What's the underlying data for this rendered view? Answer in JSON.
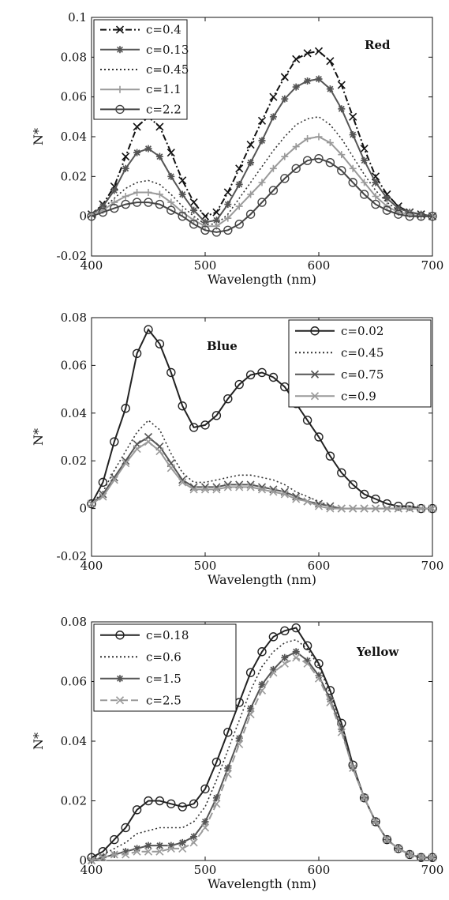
{
  "chart_data": [
    {
      "type": "line",
      "title": "Red",
      "xlabel": "Wavelength (nm)",
      "ylabel": "N*",
      "xlim": [
        400,
        700
      ],
      "ylim": [
        -0.02,
        0.1
      ],
      "xticks": [
        400,
        500,
        600,
        700
      ],
      "xtick_labels": [
        "400",
        "500",
        "600",
        "700"
      ],
      "yticks": [
        -0.02,
        0,
        0.02,
        0.04,
        0.06,
        0.08,
        0.1
      ],
      "ytick_labels": [
        "-0.02",
        "0",
        "0.02",
        "0.04",
        "0.06",
        "0.08",
        "0.1"
      ],
      "legend_position": "top-left",
      "x": [
        400,
        410,
        420,
        430,
        440,
        450,
        460,
        470,
        480,
        490,
        500,
        510,
        520,
        530,
        540,
        550,
        560,
        570,
        580,
        590,
        600,
        610,
        620,
        630,
        640,
        650,
        660,
        670,
        680,
        690,
        700
      ],
      "series": [
        {
          "name": "c=0.4",
          "color": "#111111",
          "dash": "8,3,2,3",
          "marker": "x",
          "values": [
            0.001,
            0.006,
            0.015,
            0.03,
            0.045,
            0.05,
            0.045,
            0.032,
            0.018,
            0.007,
            0.0,
            0.002,
            0.012,
            0.024,
            0.036,
            0.048,
            0.06,
            0.07,
            0.079,
            0.082,
            0.083,
            0.078,
            0.066,
            0.05,
            0.034,
            0.02,
            0.011,
            0.005,
            0.002,
            0.001,
            0.0
          ]
        },
        {
          "name": "c=0.13",
          "color": "#555555",
          "dash": "",
          "marker": "star",
          "values": [
            0.001,
            0.005,
            0.013,
            0.024,
            0.032,
            0.034,
            0.03,
            0.02,
            0.011,
            0.003,
            -0.003,
            -0.002,
            0.006,
            0.016,
            0.027,
            0.038,
            0.05,
            0.059,
            0.065,
            0.068,
            0.069,
            0.064,
            0.054,
            0.041,
            0.028,
            0.017,
            0.009,
            0.004,
            0.002,
            0.001,
            0.0
          ]
        },
        {
          "name": "c=0.45",
          "color": "#333333",
          "dash": "2,3",
          "marker": "none",
          "values": [
            0.001,
            0.004,
            0.009,
            0.014,
            0.017,
            0.018,
            0.016,
            0.011,
            0.005,
            0.0,
            -0.004,
            -0.004,
            0.001,
            0.009,
            0.017,
            0.025,
            0.033,
            0.04,
            0.046,
            0.049,
            0.05,
            0.046,
            0.039,
            0.03,
            0.021,
            0.013,
            0.007,
            0.003,
            0.001,
            0.0,
            0.0
          ]
        },
        {
          "name": "c=1.1",
          "color": "#9a9a9a",
          "dash": "",
          "marker": "plus",
          "values": [
            0.001,
            0.003,
            0.007,
            0.01,
            0.012,
            0.012,
            0.011,
            0.007,
            0.002,
            -0.002,
            -0.005,
            -0.005,
            -0.001,
            0.005,
            0.011,
            0.017,
            0.024,
            0.03,
            0.035,
            0.039,
            0.04,
            0.037,
            0.031,
            0.024,
            0.017,
            0.01,
            0.005,
            0.002,
            0.001,
            0.0,
            0.0
          ]
        },
        {
          "name": "c=2.2",
          "color": "#444444",
          "dash": "",
          "marker": "circle",
          "values": [
            0.0,
            0.002,
            0.004,
            0.006,
            0.007,
            0.007,
            0.006,
            0.003,
            0.0,
            -0.004,
            -0.007,
            -0.008,
            -0.007,
            -0.004,
            0.001,
            0.007,
            0.013,
            0.019,
            0.024,
            0.028,
            0.029,
            0.027,
            0.023,
            0.017,
            0.011,
            0.006,
            0.003,
            0.001,
            0.0,
            0.0,
            0.0
          ]
        }
      ]
    },
    {
      "type": "line",
      "title": "Blue",
      "xlabel": "Wavelength (nm)",
      "ylabel": "N*",
      "xlim": [
        400,
        700
      ],
      "ylim": [
        -0.02,
        0.08
      ],
      "xticks": [
        400,
        500,
        600,
        700
      ],
      "xtick_labels": [
        "400",
        "500",
        "600",
        "700"
      ],
      "yticks": [
        -0.02,
        0,
        0.02,
        0.04,
        0.06,
        0.08
      ],
      "ytick_labels": [
        "-0.02",
        "0",
        "0.02",
        "0.04",
        "0.06",
        "0.08"
      ],
      "legend_position": "top-right",
      "x": [
        400,
        410,
        420,
        430,
        440,
        450,
        460,
        470,
        480,
        490,
        500,
        510,
        520,
        530,
        540,
        550,
        560,
        570,
        580,
        590,
        600,
        610,
        620,
        630,
        640,
        650,
        660,
        670,
        680,
        690,
        700
      ],
      "series": [
        {
          "name": "c=0.02",
          "color": "#222222",
          "dash": "",
          "marker": "circle",
          "values": [
            0.002,
            0.011,
            0.028,
            0.042,
            0.065,
            0.075,
            0.069,
            0.057,
            0.043,
            0.034,
            0.035,
            0.039,
            0.046,
            0.052,
            0.056,
            0.057,
            0.055,
            0.051,
            0.044,
            0.037,
            0.03,
            0.022,
            0.015,
            0.01,
            0.006,
            0.004,
            0.002,
            0.001,
            0.001,
            0.0,
            0.0
          ]
        },
        {
          "name": "c=0.45",
          "color": "#333333",
          "dash": "2,3",
          "marker": "none",
          "values": [
            0.002,
            0.007,
            0.016,
            0.024,
            0.032,
            0.037,
            0.033,
            0.023,
            0.015,
            0.011,
            0.011,
            0.012,
            0.013,
            0.014,
            0.014,
            0.013,
            0.012,
            0.01,
            0.007,
            0.005,
            0.003,
            0.001,
            0.0,
            0.0,
            0.0,
            0.0,
            0.0,
            0.0,
            0.0,
            0.0,
            0.0
          ]
        },
        {
          "name": "c=0.75",
          "color": "#555555",
          "dash": "",
          "marker": "x",
          "values": [
            0.002,
            0.006,
            0.013,
            0.02,
            0.027,
            0.03,
            0.026,
            0.019,
            0.012,
            0.009,
            0.009,
            0.009,
            0.01,
            0.01,
            0.01,
            0.009,
            0.008,
            0.007,
            0.005,
            0.003,
            0.002,
            0.001,
            0.0,
            0.0,
            0.0,
            0.0,
            0.0,
            0.0,
            0.0,
            0.0,
            0.0
          ]
        },
        {
          "name": "c=0.9",
          "color": "#9a9a9a",
          "dash": "",
          "marker": "x",
          "values": [
            0.002,
            0.005,
            0.012,
            0.019,
            0.025,
            0.028,
            0.024,
            0.017,
            0.011,
            0.008,
            0.008,
            0.008,
            0.009,
            0.009,
            0.009,
            0.008,
            0.007,
            0.006,
            0.004,
            0.003,
            0.001,
            0.0,
            0.0,
            0.0,
            0.0,
            0.0,
            0.0,
            0.0,
            0.0,
            0.0,
            0.0
          ]
        }
      ]
    },
    {
      "type": "line",
      "title": "Yellow",
      "xlabel": "Wavelength (nm)",
      "ylabel": "N*",
      "xlim": [
        400,
        700
      ],
      "ylim": [
        0,
        0.08
      ],
      "xticks": [
        400,
        500,
        600,
        700
      ],
      "xtick_labels": [
        "400",
        "500",
        "600",
        "700"
      ],
      "yticks": [
        0,
        0.02,
        0.04,
        0.06,
        0.08
      ],
      "ytick_labels": [
        "0",
        "0.02",
        "0.04",
        "0.06",
        "0.08"
      ],
      "legend_position": "top-left",
      "x": [
        400,
        410,
        420,
        430,
        440,
        450,
        460,
        470,
        480,
        490,
        500,
        510,
        520,
        530,
        540,
        550,
        560,
        570,
        580,
        590,
        600,
        610,
        620,
        630,
        640,
        650,
        660,
        670,
        680,
        690,
        700
      ],
      "series": [
        {
          "name": "c=0.18",
          "color": "#222222",
          "dash": "",
          "marker": "circle",
          "values": [
            0.001,
            0.003,
            0.007,
            0.011,
            0.017,
            0.02,
            0.02,
            0.019,
            0.018,
            0.019,
            0.024,
            0.033,
            0.043,
            0.053,
            0.063,
            0.07,
            0.075,
            0.077,
            0.078,
            0.072,
            0.066,
            0.057,
            0.046,
            0.032,
            0.021,
            0.013,
            0.007,
            0.004,
            0.002,
            0.001,
            0.001
          ]
        },
        {
          "name": "c=0.6",
          "color": "#333333",
          "dash": "2,3",
          "marker": "none",
          "values": [
            0.001,
            0.002,
            0.004,
            0.006,
            0.009,
            0.01,
            0.011,
            0.011,
            0.011,
            0.013,
            0.018,
            0.027,
            0.037,
            0.047,
            0.057,
            0.065,
            0.07,
            0.073,
            0.074,
            0.071,
            0.065,
            0.056,
            0.045,
            0.032,
            0.021,
            0.013,
            0.007,
            0.004,
            0.002,
            0.001,
            0.001
          ]
        },
        {
          "name": "c=1.5",
          "color": "#555555",
          "dash": "",
          "marker": "star",
          "values": [
            0.0,
            0.001,
            0.002,
            0.003,
            0.004,
            0.005,
            0.005,
            0.005,
            0.006,
            0.008,
            0.013,
            0.021,
            0.031,
            0.041,
            0.051,
            0.059,
            0.064,
            0.068,
            0.07,
            0.067,
            0.062,
            0.054,
            0.044,
            0.031,
            0.021,
            0.013,
            0.007,
            0.004,
            0.002,
            0.001,
            0.001
          ]
        },
        {
          "name": "c=2.5",
          "color": "#9a9a9a",
          "dash": "9,4",
          "marker": "x",
          "values": [
            0.0,
            0.001,
            0.002,
            0.002,
            0.003,
            0.003,
            0.003,
            0.004,
            0.004,
            0.006,
            0.011,
            0.019,
            0.029,
            0.039,
            0.049,
            0.057,
            0.063,
            0.066,
            0.068,
            0.066,
            0.061,
            0.053,
            0.043,
            0.031,
            0.021,
            0.013,
            0.007,
            0.004,
            0.002,
            0.001,
            0.001
          ]
        }
      ]
    }
  ]
}
